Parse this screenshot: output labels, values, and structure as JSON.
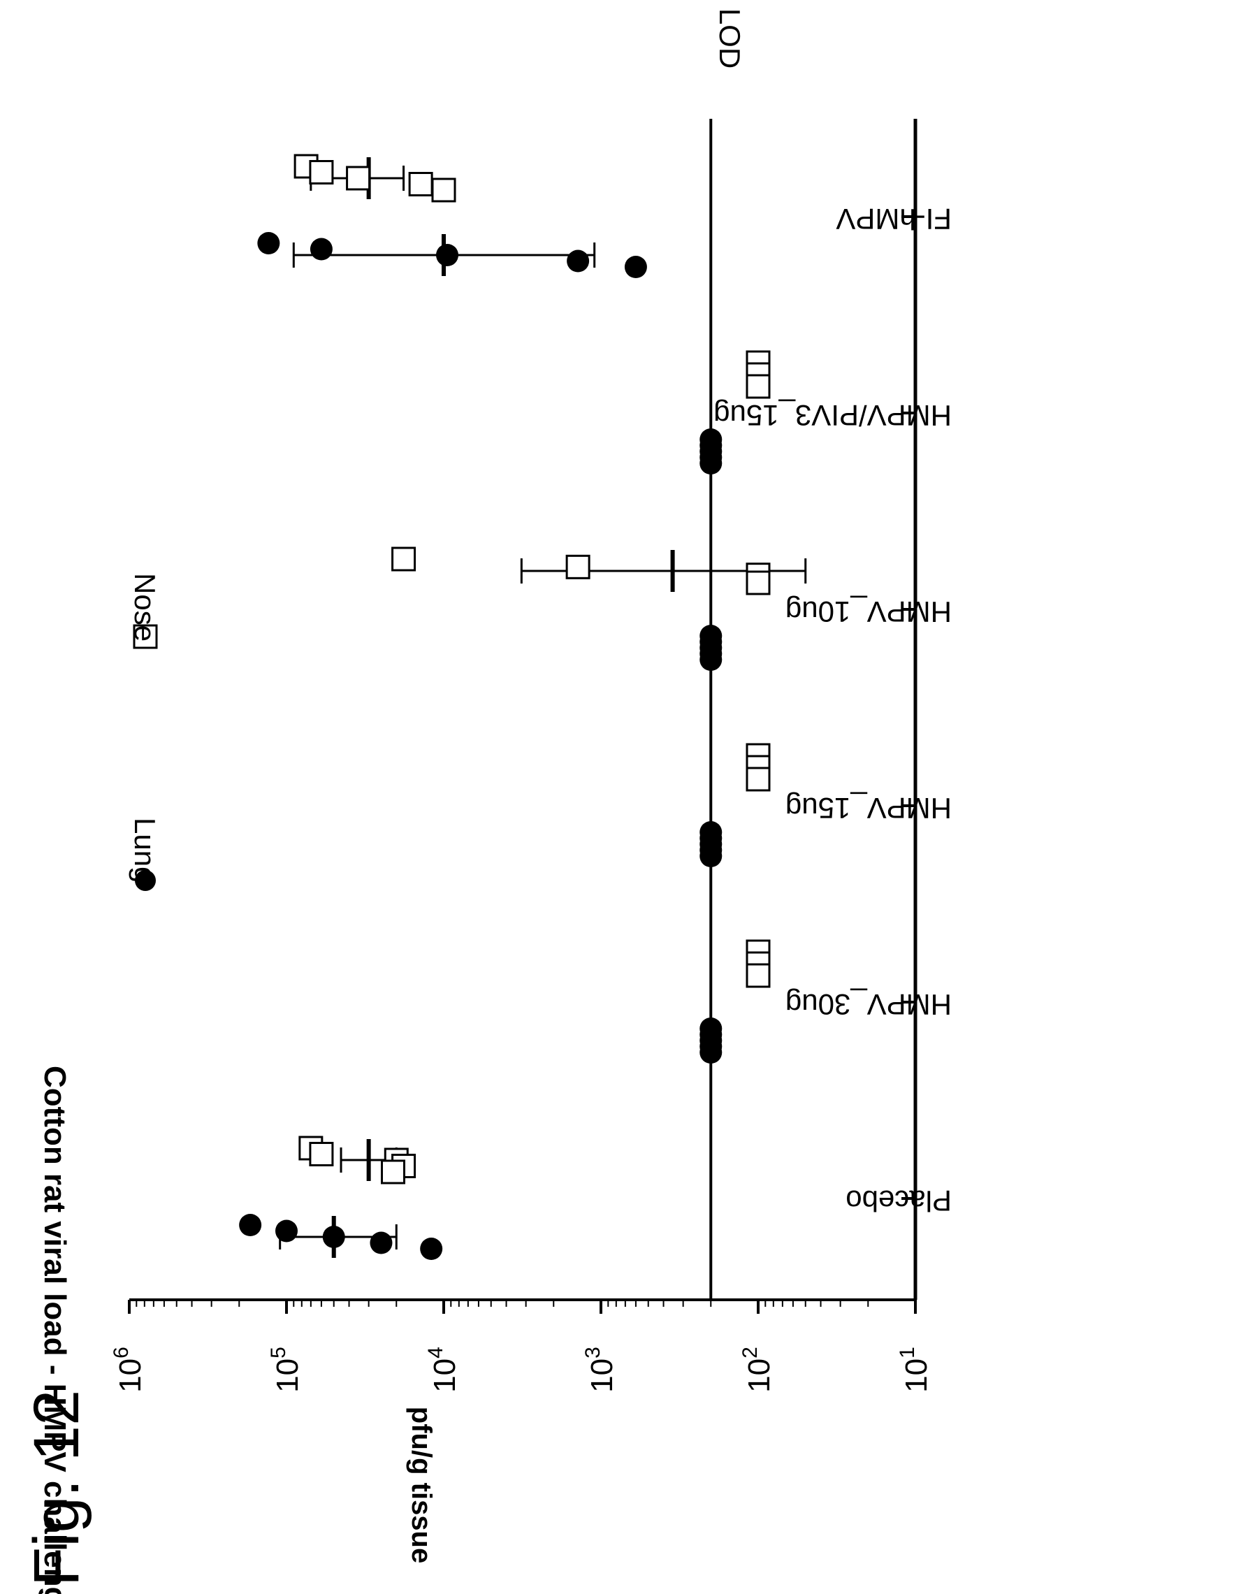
{
  "figure_label": "Fig. 12",
  "chart_data": {
    "type": "scatter",
    "title": "Cotton rat viral load - HMPV challenge",
    "ylabel": "pfu/g tissue",
    "xlabel": "",
    "y_scale": "log",
    "ylim": [
      10,
      1000000
    ],
    "y_ticks": [
      {
        "value": 1000000,
        "base": "10",
        "exp": "6"
      },
      {
        "value": 100000,
        "base": "10",
        "exp": "5"
      },
      {
        "value": 10000,
        "base": "10",
        "exp": "4"
      },
      {
        "value": 1000,
        "base": "10",
        "exp": "3"
      },
      {
        "value": 100,
        "base": "10",
        "exp": "2"
      },
      {
        "value": 10,
        "base": "10",
        "exp": "1"
      }
    ],
    "lod": {
      "label": "LOD",
      "value": 200
    },
    "categories": [
      "Placebo",
      "HMPV_30ug",
      "HMPV_15ug",
      "HMPV_10ug",
      "HMPV/PIV3_15ug",
      "FI-hMPV"
    ],
    "legend_position": "top",
    "grid": false,
    "series": [
      {
        "name": "Lung",
        "marker": "filled-circle",
        "groups": [
          {
            "category": "Placebo",
            "points": [
              170000,
              100000,
              50000,
              25000,
              12000
            ],
            "mean": 50000,
            "err": [
              110000,
              20000
            ]
          },
          {
            "category": "HMPV_30ug",
            "points": [
              200,
              200,
              200,
              200,
              200
            ],
            "mean": 200,
            "err": [
              200,
              200
            ]
          },
          {
            "category": "HMPV_15ug",
            "points": [
              200,
              200,
              200,
              200,
              200
            ],
            "mean": 200,
            "err": [
              200,
              200
            ]
          },
          {
            "category": "HMPV_10ug",
            "points": [
              200,
              200,
              200,
              200,
              200
            ],
            "mean": 200,
            "err": [
              200,
              200
            ]
          },
          {
            "category": "HMPV/PIV3_15ug",
            "points": [
              200,
              200,
              200,
              200,
              200
            ],
            "mean": 200,
            "err": [
              200,
              200
            ]
          },
          {
            "category": "FI-hMPV",
            "points": [
              130000,
              60000,
              9500,
              1400,
              600
            ],
            "mean": 10000,
            "err": [
              90000,
              1100
            ]
          }
        ]
      },
      {
        "name": "Nose",
        "marker": "open-square",
        "groups": [
          {
            "category": "Placebo",
            "points": [
              70000,
              60000,
              20000,
              18000,
              21000
            ],
            "mean": 30000,
            "err": [
              45000,
              20000
            ]
          },
          {
            "category": "HMPV_30ug",
            "points": [
              100,
              100,
              100
            ],
            "mean": 100,
            "err": [
              100,
              100
            ]
          },
          {
            "category": "HMPV_15ug",
            "points": [
              100,
              100,
              100
            ],
            "mean": 100,
            "err": [
              100,
              100
            ]
          },
          {
            "category": "HMPV_10ug",
            "points": [
              18000,
              1400,
              100,
              100
            ],
            "mean": 350,
            "err": [
              3200,
              50
            ]
          },
          {
            "category": "HMPV/PIV3_15ug",
            "points": [
              100,
              100,
              100
            ],
            "mean": 100,
            "err": [
              100,
              100
            ]
          },
          {
            "category": "FI-hMPV",
            "points": [
              75000,
              60000,
              35000,
              14000,
              10000
            ],
            "mean": 30000,
            "err": [
              70000,
              18000
            ]
          }
        ]
      }
    ]
  }
}
